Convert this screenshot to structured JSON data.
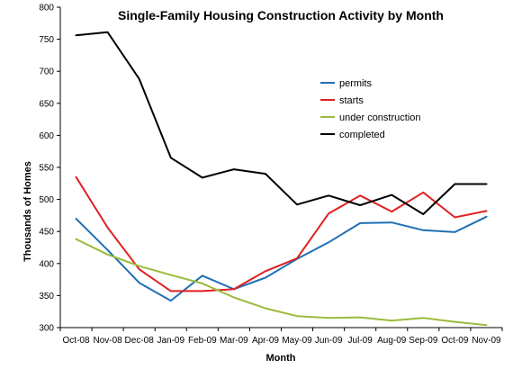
{
  "chart_data": {
    "type": "line",
    "title": "Single-Family Housing Construction Activity by Month",
    "xlabel": "Month",
    "ylabel": "Thousands of Homes",
    "ylim": [
      300,
      800
    ],
    "yticks": [
      300,
      350,
      400,
      450,
      500,
      550,
      600,
      650,
      700,
      750,
      800
    ],
    "grid": false,
    "legend_position": "center-right",
    "categories": [
      "Oct-08",
      "Nov-08",
      "Dec-08",
      "Jan-09",
      "Feb-09",
      "Mar-09",
      "Apr-09",
      "May-09",
      "Jun-09",
      "Jul-09",
      "Aug-09",
      "Sep-09",
      "Oct-09",
      "Nov-09"
    ],
    "series": [
      {
        "name": "permits",
        "color": "#1f6fb5",
        "values": [
          470,
          421,
          370,
          342,
          381,
          360,
          378,
          407,
          433,
          463,
          464,
          452,
          449,
          473
        ]
      },
      {
        "name": "starts",
        "color": "#e02020",
        "values": [
          535,
          456,
          391,
          357,
          357,
          360,
          388,
          408,
          478,
          506,
          481,
          511,
          472,
          482
        ]
      },
      {
        "name": "under construction",
        "color": "#9bbb3c",
        "values": [
          438,
          414,
          396,
          382,
          369,
          347,
          330,
          318,
          315,
          316,
          311,
          315,
          309,
          304
        ]
      },
      {
        "name": "completed",
        "color": "#000000",
        "values": [
          756,
          761,
          688,
          565,
          534,
          547,
          540,
          492,
          506,
          491,
          507,
          477,
          524,
          524
        ]
      }
    ]
  }
}
